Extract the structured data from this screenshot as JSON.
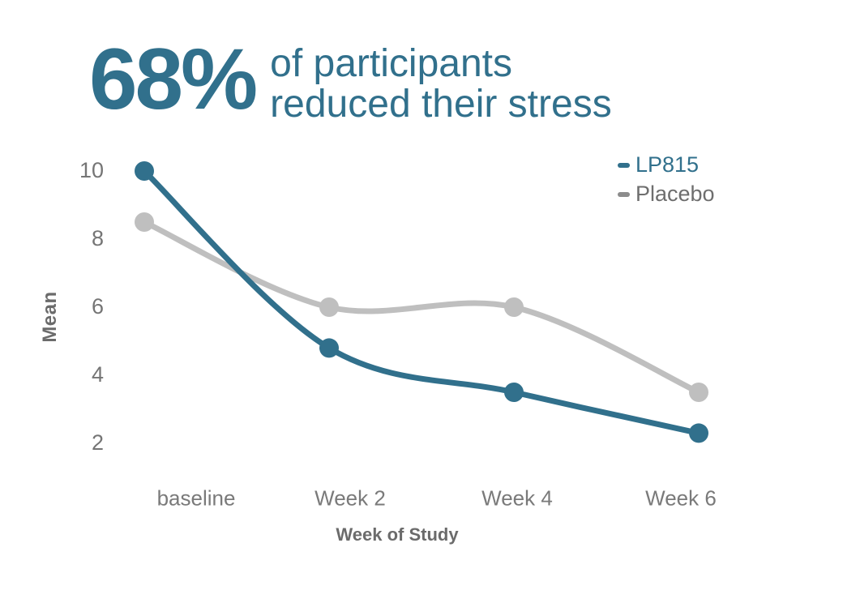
{
  "headline": {
    "stat": "68%",
    "line1": "of participants",
    "line2": "reduced their stress"
  },
  "legend": {
    "items": [
      {
        "label": "LP815"
      },
      {
        "label": "Placebo"
      }
    ]
  },
  "chart_data": {
    "type": "line",
    "title": "68% of participants reduced their stress",
    "categories": [
      "baseline",
      "Week 2",
      "Week 4",
      "Week 6"
    ],
    "series": [
      {
        "name": "LP815",
        "color": "#31708c",
        "values": [
          10,
          4.8,
          3.5,
          2.3
        ]
      },
      {
        "name": "Placebo",
        "color": "#bfbfbf",
        "values": [
          8.5,
          6,
          6,
          3.5
        ]
      }
    ],
    "xlabel": "Week of Study",
    "ylabel": "Mean",
    "yticks": [
      10,
      8,
      6,
      4,
      2
    ],
    "ylim": [
      1,
      11
    ],
    "grid": false,
    "legend_position": "top-right",
    "marker": "circle",
    "smooth": true
  },
  "colors": {
    "accent_teal": "#31708c",
    "placebo_line": "#bfbfbf",
    "placebo_swatch": "#8c8c8c",
    "placebo_label": "#6e6e6e",
    "axis_tick_text": "#757575",
    "axis_title_text": "#6b6b6b",
    "background": "#ffffff"
  }
}
